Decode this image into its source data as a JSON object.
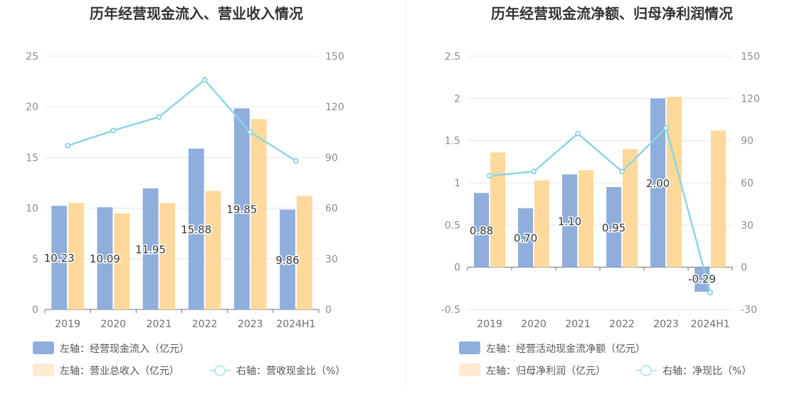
{
  "chart_data": [
    {
      "type": "bar",
      "title": "历年经营现金流入、营业收入情况",
      "categories": [
        "2019",
        "2020",
        "2021",
        "2022",
        "2023",
        "2024H1"
      ],
      "left_axis": {
        "ylim": [
          0,
          25
        ],
        "ticks": [
          "0",
          "5",
          "10",
          "15",
          "20",
          "25"
        ]
      },
      "right_axis": {
        "ylim": [
          0,
          150
        ],
        "ticks": [
          "0",
          "30",
          "60",
          "90",
          "120",
          "150"
        ]
      },
      "series": [
        {
          "name": "左轴：经营现金流入（亿元）",
          "type": "bar",
          "axis": "left",
          "color": "#8faedc",
          "values": [
            10.23,
            10.09,
            11.95,
            15.88,
            19.85,
            9.86
          ],
          "show_labels": true,
          "labels": [
            "10.23",
            "10.09",
            "11.95",
            "15.88",
            "19.85",
            "9.86"
          ]
        },
        {
          "name": "左轴：营业总收入（亿元）",
          "type": "bar",
          "axis": "left",
          "color": "#fed99b",
          "values": [
            10.5,
            9.5,
            10.5,
            11.7,
            18.8,
            11.2
          ],
          "show_labels": false
        },
        {
          "name": "右轴：营收现金比（%）",
          "type": "line",
          "axis": "right",
          "color": "#8cd6df",
          "values": [
            97,
            106,
            114,
            136,
            105,
            88
          ],
          "show_labels": false
        }
      ]
    },
    {
      "type": "bar",
      "title": "历年经营现金流净额、归母净利润情况",
      "categories": [
        "2019",
        "2020",
        "2021",
        "2022",
        "2023",
        "2024H1"
      ],
      "left_axis": {
        "ylim": [
          -0.5,
          2.5
        ],
        "ticks": [
          "-0.5",
          "0",
          "0.5",
          "1",
          "1.5",
          "2",
          "2.5"
        ]
      },
      "right_axis": {
        "ylim": [
          -30,
          150
        ],
        "ticks": [
          "-30",
          "0",
          "30",
          "60",
          "90",
          "120",
          "150"
        ]
      },
      "series": [
        {
          "name": "左轴：经营活动现金流净额（亿元）",
          "type": "bar",
          "axis": "left",
          "color": "#8faedc",
          "values": [
            0.88,
            0.7,
            1.1,
            0.95,
            2.0,
            -0.29
          ],
          "show_labels": true,
          "labels": [
            "0.88",
            "0.70",
            "1.10",
            "0.95",
            "2.00",
            "-0.29"
          ]
        },
        {
          "name": "左轴：归母净利润（亿元）",
          "type": "bar",
          "axis": "left",
          "color": "#fed99b",
          "values": [
            1.36,
            1.03,
            1.15,
            1.4,
            2.02,
            1.62
          ],
          "show_labels": false
        },
        {
          "name": "右轴：净现比（%）",
          "type": "line",
          "axis": "right",
          "color": "#8cd6df",
          "values": [
            65,
            68,
            95,
            68,
            99,
            -18
          ],
          "show_labels": false
        }
      ]
    }
  ]
}
